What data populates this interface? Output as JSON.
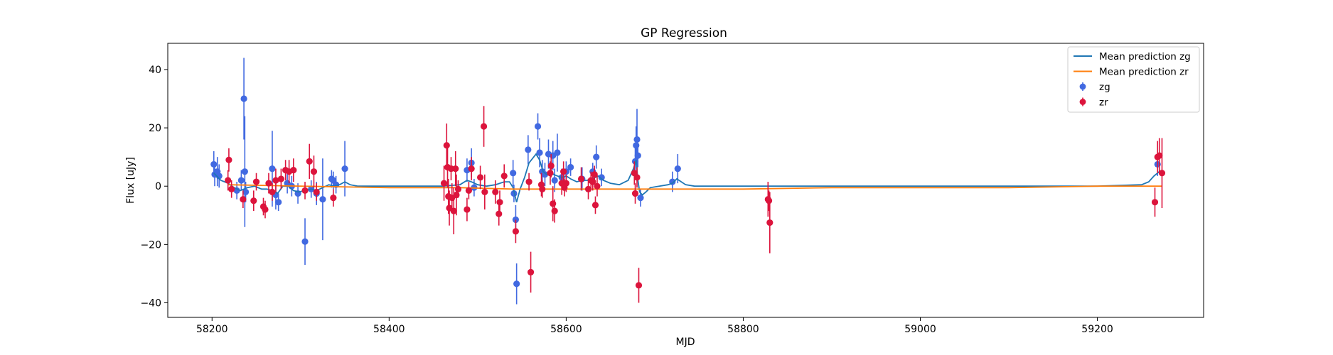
{
  "chart_data": {
    "type": "scatter",
    "title": "GP Regression",
    "xlabel": "MJD",
    "ylabel": "Flux [uJy]",
    "xlim": [
      58150,
      59320
    ],
    "ylim": [
      -45,
      49
    ],
    "xticks": [
      58200,
      58400,
      58600,
      58800,
      59000,
      59200
    ],
    "yticks": [
      -40,
      -20,
      0,
      20,
      40
    ],
    "grid": false,
    "legend": {
      "position": "top-right",
      "entries": [
        {
          "label": "Mean prediction zg",
          "kind": "line",
          "color": "#1f77b4"
        },
        {
          "label": "Mean prediction zr",
          "kind": "line",
          "color": "#ff7f0e"
        },
        {
          "label": "zg",
          "kind": "errorbar",
          "color": "#4169e1"
        },
        {
          "label": "zr",
          "kind": "errorbar",
          "color": "#dc143c"
        }
      ]
    },
    "series": [
      {
        "name": "zg",
        "kind": "errorbar",
        "color": "#4169e1",
        "points": [
          [
            58202,
            7.5,
            4.5
          ],
          [
            58203,
            4,
            4
          ],
          [
            58206,
            5,
            5
          ],
          [
            58208,
            3.5,
            4
          ],
          [
            58228,
            -1.5,
            3
          ],
          [
            58233,
            2,
            3.5
          ],
          [
            58236,
            30,
            14
          ],
          [
            58237,
            5,
            19
          ],
          [
            58238,
            -2,
            3.5
          ],
          [
            58268,
            6,
            13
          ],
          [
            58272,
            -3,
            5
          ],
          [
            58275,
            -5.5,
            3
          ],
          [
            58285,
            1,
            3.5
          ],
          [
            58290,
            0,
            3.5
          ],
          [
            58297,
            -2.5,
            3.5
          ],
          [
            58305,
            -19,
            8
          ],
          [
            58312,
            -1,
            3
          ],
          [
            58318,
            -2.5,
            4
          ],
          [
            58325,
            -4.5,
            14
          ],
          [
            58335,
            2.5,
            3
          ],
          [
            58337,
            2,
            3
          ],
          [
            58340,
            0.5,
            3
          ],
          [
            58350,
            6,
            9.5
          ],
          [
            58488,
            5.5,
            4
          ],
          [
            58493,
            8,
            5
          ],
          [
            58496,
            -0.5,
            3
          ],
          [
            58540,
            4.5,
            4.5
          ],
          [
            58541,
            -2.5,
            3
          ],
          [
            58543,
            -11.5,
            5
          ],
          [
            58544,
            -33.5,
            7
          ],
          [
            58557,
            12.5,
            5
          ],
          [
            58568,
            20.5,
            4.5
          ],
          [
            58570,
            11.5,
            5
          ],
          [
            58573,
            5,
            4
          ],
          [
            58576,
            4,
            4
          ],
          [
            58580,
            11,
            5
          ],
          [
            58585,
            10.5,
            5
          ],
          [
            58587,
            2,
            4
          ],
          [
            58590,
            11.5,
            6.5
          ],
          [
            58595,
            3,
            3
          ],
          [
            58600,
            5,
            3.5
          ],
          [
            58605,
            6.5,
            3
          ],
          [
            58618,
            2.5,
            4
          ],
          [
            58630,
            5,
            3
          ],
          [
            58634,
            10,
            4
          ],
          [
            58640,
            3,
            3
          ],
          [
            58678,
            8.5,
            5
          ],
          [
            58679,
            14,
            6.5
          ],
          [
            58680,
            16,
            10.5
          ],
          [
            58681,
            10.5,
            4
          ],
          [
            58684,
            -4,
            3
          ],
          [
            58720,
            1.5,
            3.5
          ],
          [
            58726,
            6,
            5
          ],
          [
            59268,
            7.5,
            4
          ]
        ]
      },
      {
        "name": "zr",
        "kind": "errorbar",
        "color": "#dc143c",
        "points": [
          [
            58218,
            2,
            3.5
          ],
          [
            58219,
            9,
            4
          ],
          [
            58222,
            -1,
            3
          ],
          [
            58235,
            -4.5,
            3
          ],
          [
            58247,
            -5,
            3.5
          ],
          [
            58250,
            1.5,
            3
          ],
          [
            58258,
            -7,
            3
          ],
          [
            58260,
            -8,
            3
          ],
          [
            58264,
            1,
            3.5
          ],
          [
            58268,
            -2,
            3
          ],
          [
            58272,
            2,
            4
          ],
          [
            58278,
            2.5,
            3.5
          ],
          [
            58283,
            5.5,
            3.5
          ],
          [
            58287,
            5,
            4
          ],
          [
            58292,
            5.5,
            4
          ],
          [
            58305,
            -1.5,
            3
          ],
          [
            58310,
            8.5,
            6
          ],
          [
            58315,
            5,
            5.5
          ],
          [
            58318,
            -2,
            3
          ],
          [
            58337,
            -4,
            3
          ],
          [
            58462,
            1,
            6
          ],
          [
            58465,
            14,
            7.5
          ],
          [
            58466,
            6.5,
            7
          ],
          [
            58467,
            -3.5,
            6
          ],
          [
            58468,
            -7.5,
            6
          ],
          [
            58470,
            6,
            4
          ],
          [
            58471,
            -4,
            5
          ],
          [
            58473,
            -8.5,
            8
          ],
          [
            58475,
            6,
            6
          ],
          [
            58476,
            -3,
            7
          ],
          [
            58478,
            -1,
            3
          ],
          [
            58488,
            -8,
            4
          ],
          [
            58490,
            -1.5,
            3
          ],
          [
            58493,
            6,
            4
          ],
          [
            58503,
            3,
            4
          ],
          [
            58507,
            20.5,
            7
          ],
          [
            58508,
            -2,
            6
          ],
          [
            58520,
            -2,
            4
          ],
          [
            58524,
            -9.5,
            4
          ],
          [
            58525,
            -5.5,
            4
          ],
          [
            58530,
            3.5,
            4
          ],
          [
            58543,
            -15.5,
            4
          ],
          [
            58558,
            1.5,
            3
          ],
          [
            58560,
            -29.5,
            7
          ],
          [
            58572,
            0.5,
            4
          ],
          [
            58573,
            -1,
            3
          ],
          [
            58582,
            4.5,
            4
          ],
          [
            58583,
            7,
            4
          ],
          [
            58585,
            -6,
            6
          ],
          [
            58587,
            -8.5,
            4
          ],
          [
            58595,
            1,
            4
          ],
          [
            58597,
            5,
            3.5
          ],
          [
            58598,
            -0.5,
            3
          ],
          [
            58600,
            1,
            3
          ],
          [
            58617,
            2.5,
            4
          ],
          [
            58625,
            -1,
            3.5
          ],
          [
            58628,
            2,
            3
          ],
          [
            58630,
            1.5,
            3
          ],
          [
            58632,
            4,
            3
          ],
          [
            58633,
            -6.5,
            3
          ],
          [
            58635,
            0,
            3.5
          ],
          [
            58677,
            4.5,
            4
          ],
          [
            58678,
            -2.5,
            3.5
          ],
          [
            58680,
            3,
            3.5
          ],
          [
            58682,
            -34,
            6
          ],
          [
            58828,
            -4.5,
            6
          ],
          [
            58829,
            -5,
            3.5
          ],
          [
            58830,
            -12.5,
            10.5
          ],
          [
            59265,
            -5.5,
            5
          ],
          [
            59268,
            10,
            5.5
          ],
          [
            59270,
            10.5,
            6
          ],
          [
            59273,
            4.5,
            12
          ]
        ]
      },
      {
        "name": "Mean prediction zg",
        "kind": "line",
        "color": "#1f77b4",
        "points": [
          [
            58202,
            4.5
          ],
          [
            58210,
            2
          ],
          [
            58218,
            1
          ],
          [
            58225,
            -0.5
          ],
          [
            58232,
            -1.5
          ],
          [
            58240,
            -0.5
          ],
          [
            58248,
            0
          ],
          [
            58256,
            -1
          ],
          [
            58262,
            -1
          ],
          [
            58268,
            -1.5
          ],
          [
            58274,
            -2.5
          ],
          [
            58280,
            0
          ],
          [
            58286,
            0
          ],
          [
            58292,
            -1.5
          ],
          [
            58298,
            -2
          ],
          [
            58305,
            -1.5
          ],
          [
            58312,
            -1
          ],
          [
            58318,
            -1.5
          ],
          [
            58325,
            -0.5
          ],
          [
            58332,
            0.5
          ],
          [
            58338,
            0
          ],
          [
            58344,
            0.5
          ],
          [
            58350,
            1.5
          ],
          [
            58356,
            0.5
          ],
          [
            58365,
            0
          ],
          [
            58380,
            0
          ],
          [
            58420,
            0
          ],
          [
            58460,
            0
          ],
          [
            58480,
            0.5
          ],
          [
            58488,
            2
          ],
          [
            58493,
            1.5
          ],
          [
            58500,
            0.5
          ],
          [
            58510,
            0
          ],
          [
            58520,
            0.5
          ],
          [
            58530,
            1.5
          ],
          [
            58536,
            1.5
          ],
          [
            58540,
            -0.5
          ],
          [
            58544,
            -5.5
          ],
          [
            58548,
            -1
          ],
          [
            58553,
            3
          ],
          [
            58558,
            8
          ],
          [
            58562,
            9.5
          ],
          [
            58566,
            11
          ],
          [
            58570,
            9
          ],
          [
            58574,
            5
          ],
          [
            58578,
            4
          ],
          [
            58582,
            5
          ],
          [
            58586,
            4
          ],
          [
            58590,
            3.5
          ],
          [
            58595,
            3
          ],
          [
            58600,
            3.5
          ],
          [
            58605,
            2.5
          ],
          [
            58612,
            1.5
          ],
          [
            58618,
            2
          ],
          [
            58624,
            2
          ],
          [
            58630,
            2.5
          ],
          [
            58636,
            3.5
          ],
          [
            58642,
            2
          ],
          [
            58650,
            1
          ],
          [
            58660,
            0.5
          ],
          [
            58670,
            2
          ],
          [
            58676,
            6
          ],
          [
            58679,
            9
          ],
          [
            58681,
            2
          ],
          [
            58683,
            -2
          ],
          [
            58686,
            -3
          ],
          [
            58690,
            -2
          ],
          [
            58695,
            -0.5
          ],
          [
            58705,
            0
          ],
          [
            58715,
            0.5
          ],
          [
            58720,
            1
          ],
          [
            58725,
            2.5
          ],
          [
            58730,
            1.5
          ],
          [
            58735,
            0.5
          ],
          [
            58745,
            0
          ],
          [
            58800,
            0
          ],
          [
            58900,
            0
          ],
          [
            59000,
            0
          ],
          [
            59100,
            0
          ],
          [
            59200,
            0
          ],
          [
            59250,
            0.5
          ],
          [
            59258,
            1.5
          ],
          [
            59264,
            3.5
          ],
          [
            59270,
            5
          ]
        ]
      },
      {
        "name": "Mean prediction zr",
        "kind": "line",
        "color": "#ff7f0e",
        "points": [
          [
            58218,
            0.5
          ],
          [
            58300,
            0
          ],
          [
            58400,
            -0.5
          ],
          [
            58480,
            -0.5
          ],
          [
            58540,
            -1
          ],
          [
            58600,
            -1
          ],
          [
            58650,
            -1
          ],
          [
            58700,
            -1
          ],
          [
            58800,
            -1
          ],
          [
            58900,
            -0.5
          ],
          [
            59000,
            -0.5
          ],
          [
            59100,
            -0.5
          ],
          [
            59200,
            0
          ],
          [
            59273,
            0
          ]
        ]
      }
    ]
  }
}
